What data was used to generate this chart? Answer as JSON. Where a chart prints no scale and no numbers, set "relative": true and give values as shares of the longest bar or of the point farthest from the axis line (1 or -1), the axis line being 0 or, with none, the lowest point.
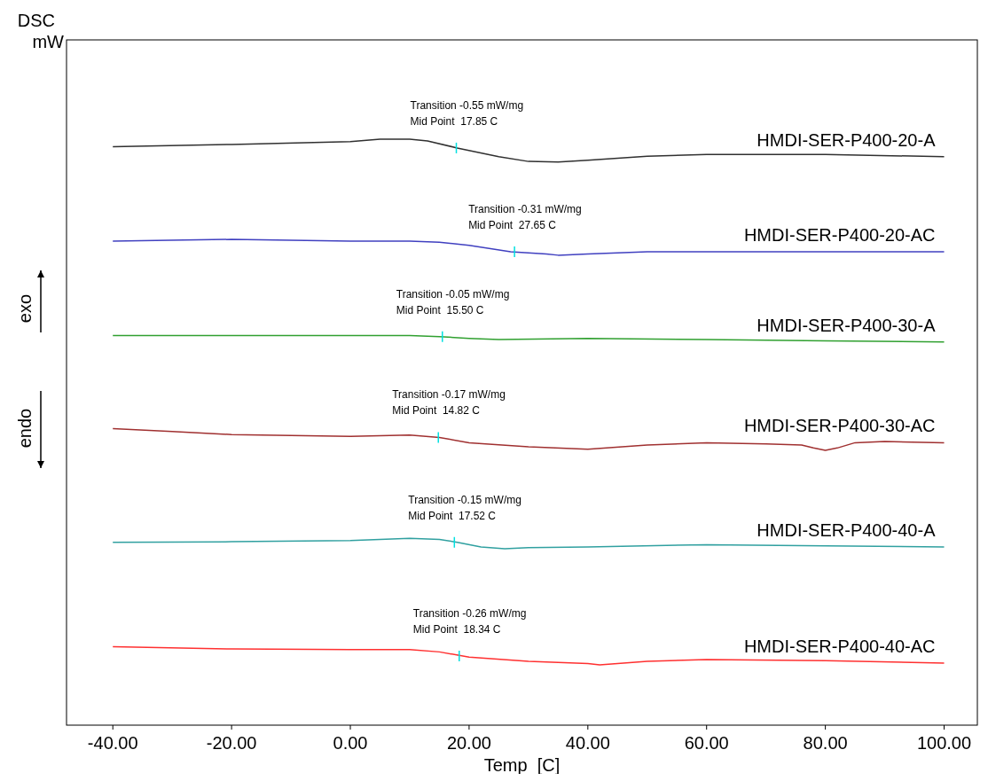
{
  "chart_data": {
    "type": "line",
    "relative": true,
    "ylabel": "DSC\nmW",
    "xlabel": "Temp  [C]",
    "xlim": [
      -47.8,
      105.6
    ],
    "xticks": [
      {
        "value": -40,
        "label": "-40.00"
      },
      {
        "value": -20,
        "label": "-20.00"
      },
      {
        "value": 0,
        "label": "0.00"
      },
      {
        "value": 20,
        "label": "20.00"
      },
      {
        "value": 40,
        "label": "40.00"
      },
      {
        "value": 60,
        "label": "60.00"
      },
      {
        "value": 80,
        "label": "80.00"
      },
      {
        "value": 100,
        "label": "100.00"
      }
    ],
    "tick_labels": "x",
    "grid": false,
    "legend": false,
    "marker": "none",
    "line_style": "solid",
    "series": [
      {
        "name": "HMDI-SER-P400-20-A",
        "color": "#303030",
        "x": [
          -40,
          -20,
          0,
          5,
          10,
          13,
          18,
          25,
          30,
          35,
          40,
          50,
          60,
          80,
          100
        ],
        "values": [
          0.987,
          0.991,
          0.996,
          1,
          1,
          0.997,
          0.985,
          0.97,
          0.962,
          0.961,
          0.964,
          0.971,
          0.974,
          0.974,
          0.97
        ]
      },
      {
        "name": "HMDI-SER-P400-20-AC",
        "color": "#4040c0",
        "x": [
          -40,
          -20,
          0,
          10,
          15,
          20,
          27,
          33,
          35,
          40,
          50,
          60,
          80,
          100
        ],
        "values": [
          0.826,
          0.829,
          0.826,
          0.826,
          0.824,
          0.819,
          0.808,
          0.804,
          0.802,
          0.804,
          0.808,
          0.808,
          0.808,
          0.808
        ]
      },
      {
        "name": "HMDI-SER-P400-30-A",
        "color": "#30a030",
        "x": [
          -40,
          -20,
          0,
          10,
          15,
          20,
          25,
          40,
          60,
          80,
          100
        ],
        "values": [
          0.665,
          0.665,
          0.665,
          0.665,
          0.663,
          0.66,
          0.658,
          0.66,
          0.658,
          0.656,
          0.654
        ]
      },
      {
        "name": "HMDI-SER-P400-30-AC",
        "color": "#a03030",
        "x": [
          -40,
          -30,
          -20,
          0,
          10,
          15,
          20,
          30,
          40,
          50,
          60,
          70,
          76,
          78,
          80,
          82,
          85,
          90,
          100
        ],
        "values": [
          0.506,
          0.501,
          0.496,
          0.493,
          0.495,
          0.491,
          0.482,
          0.475,
          0.471,
          0.478,
          0.482,
          0.48,
          0.478,
          0.473,
          0.469,
          0.473,
          0.482,
          0.484,
          0.482
        ]
      },
      {
        "name": "HMDI-SER-P400-40-A",
        "color": "#30a0a0",
        "x": [
          -40,
          -20,
          0,
          5,
          10,
          15,
          18,
          22,
          26,
          30,
          40,
          60,
          80,
          100
        ],
        "values": [
          0.312,
          0.313,
          0.315,
          0.317,
          0.319,
          0.317,
          0.312,
          0.304,
          0.301,
          0.303,
          0.304,
          0.308,
          0.306,
          0.304
        ]
      },
      {
        "name": "HMDI-SER-P400-40-AC",
        "color": "#ff3030",
        "x": [
          -40,
          -20,
          0,
          10,
          15,
          20,
          30,
          40,
          42,
          50,
          60,
          80,
          100
        ],
        "values": [
          0.134,
          0.13,
          0.129,
          0.129,
          0.125,
          0.116,
          0.109,
          0.105,
          0.103,
          0.109,
          0.112,
          0.11,
          0.106
        ]
      }
    ],
    "annotations": [
      {
        "text": "Transition -0.55 mW/mg\nMid Point  17.85 C",
        "x": 17.85,
        "y": 0.985
      },
      {
        "text": "Transition -0.31 mW/mg\nMid Point  27.65 C",
        "x": 27.65,
        "y": 0.808
      },
      {
        "text": "Transition -0.05 mW/mg\nMid Point  15.50 C",
        "x": 15.5,
        "y": 0.663
      },
      {
        "text": "Transition -0.17 mW/mg\nMid Point  14.82 C",
        "x": 14.82,
        "y": 0.491
      },
      {
        "text": "Transition -0.15 mW/mg\nMid Point  17.52 C",
        "x": 17.52,
        "y": 0.312
      },
      {
        "text": "Transition -0.26 mW/mg\nMid Point  18.34 C",
        "x": 18.34,
        "y": 0.118
      },
      "exo",
      "endo"
    ]
  }
}
